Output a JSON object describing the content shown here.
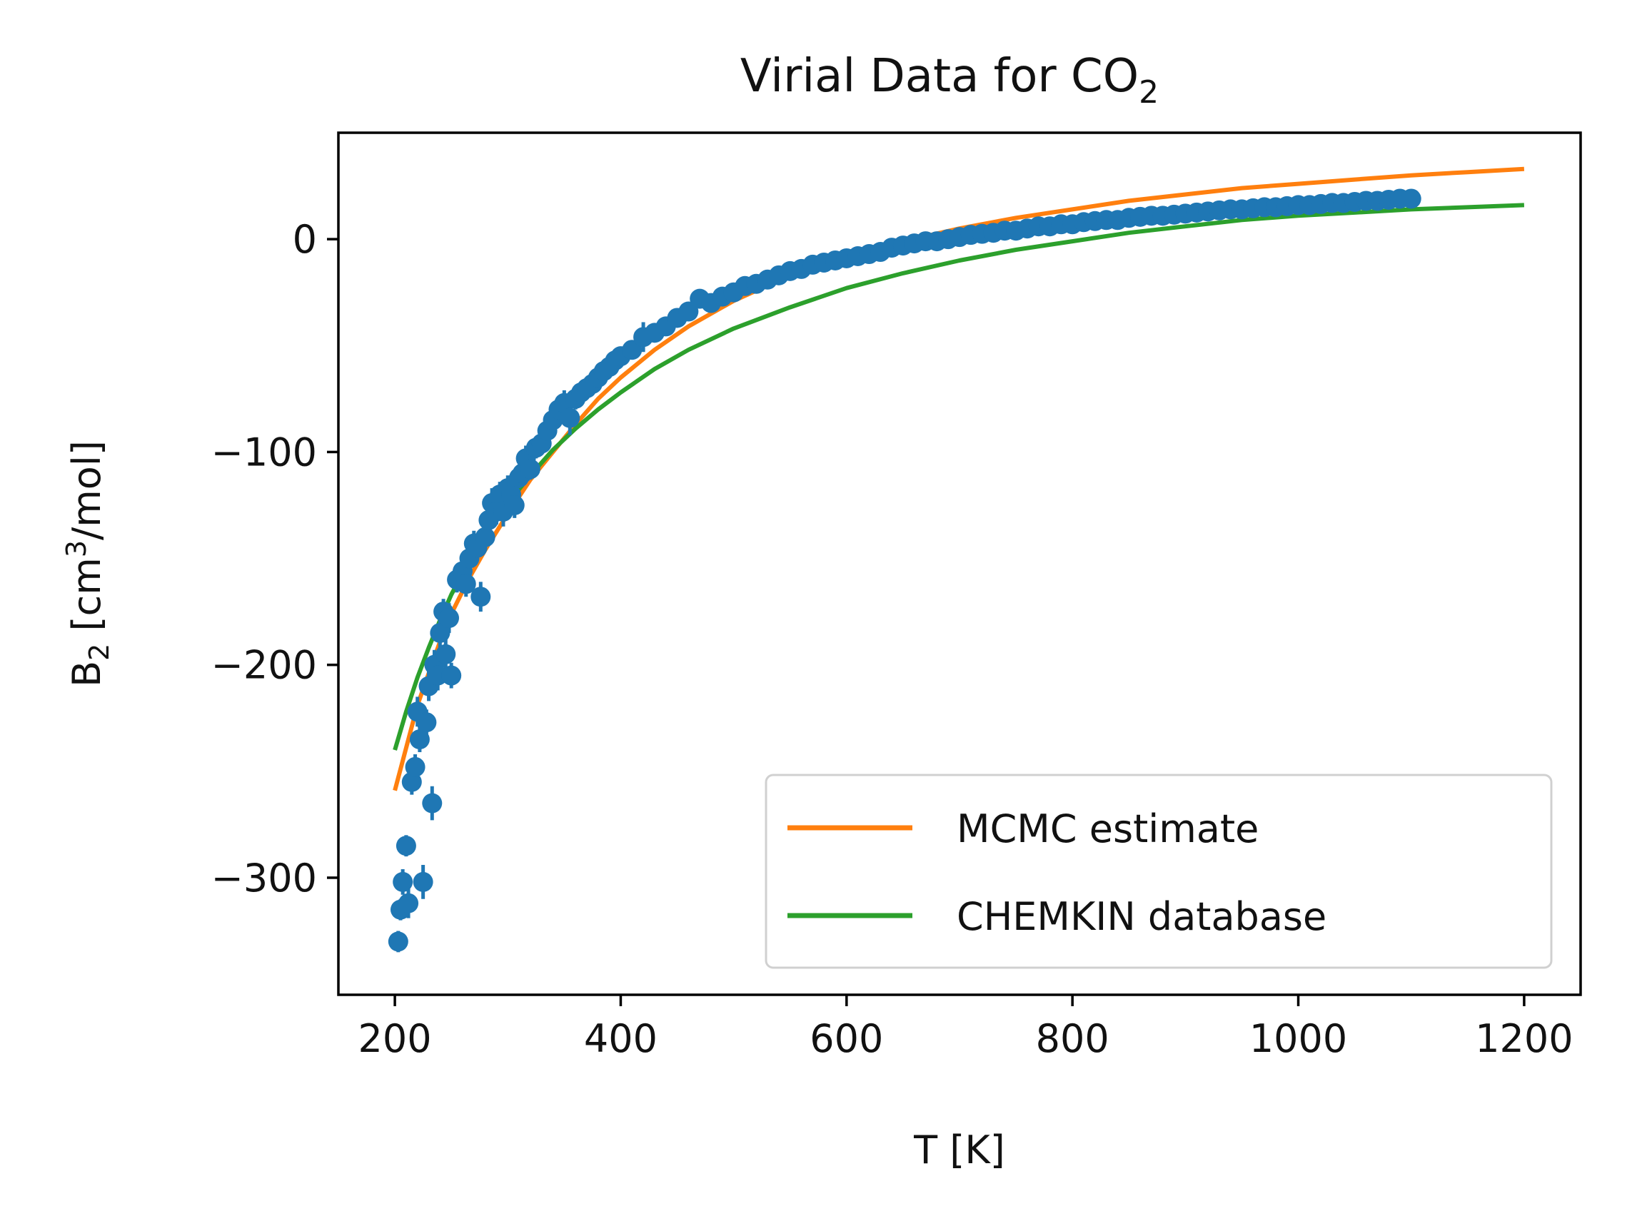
{
  "chart_data": {
    "type": "scatter",
    "title_main": "Virial Data for CO",
    "title_sub": "2",
    "xlabel": "T [K]",
    "ylabel_main": "B",
    "ylabel_sub": "2",
    "ylabel_unit_pre": " [cm",
    "ylabel_unit_sup": "3",
    "ylabel_unit_post": "/mol]",
    "xlim": [
      150,
      1250
    ],
    "ylim": [
      -355,
      50
    ],
    "xticks": [
      200,
      400,
      600,
      800,
      1000,
      1200
    ],
    "yticks": [
      0,
      -100,
      -200,
      -300
    ],
    "xtick_labels": [
      "200",
      "400",
      "600",
      "800",
      "1000",
      "1200"
    ],
    "ytick_labels": [
      "0",
      "−100",
      "−200",
      "−300"
    ],
    "grid": false,
    "legend_position": "lower-right",
    "series": [
      {
        "name": "MCMC estimate",
        "kind": "line",
        "color": "#ff7f0e",
        "x": [
          200,
          210,
          220,
          230,
          240,
          250,
          265,
          280,
          300,
          320,
          340,
          360,
          380,
          400,
          430,
          460,
          500,
          550,
          600,
          650,
          700,
          750,
          800,
          850,
          900,
          950,
          1000,
          1050,
          1100,
          1150,
          1200
        ],
        "y": [
          -259,
          -239,
          -219,
          -204,
          -189,
          -176,
          -160,
          -146,
          -129,
          -113,
          -100,
          -87,
          -75,
          -65,
          -52,
          -41,
          -29,
          -17,
          -8,
          -1,
          5,
          10,
          14,
          18,
          21,
          24,
          26,
          28,
          30,
          31.5,
          33
        ]
      },
      {
        "name": "CHEMKIN database",
        "kind": "line",
        "color": "#2ca02c",
        "x": [
          200,
          210,
          220,
          230,
          240,
          250,
          265,
          280,
          300,
          320,
          340,
          360,
          380,
          400,
          430,
          460,
          500,
          550,
          600,
          650,
          700,
          750,
          800,
          850,
          900,
          950,
          1000,
          1050,
          1100,
          1150,
          1200
        ],
        "y": [
          -240,
          -222,
          -206,
          -192,
          -179,
          -167,
          -152,
          -139,
          -124,
          -111,
          -99,
          -89,
          -80,
          -72,
          -61,
          -52,
          -42,
          -32,
          -23,
          -16,
          -10,
          -5,
          -1,
          3,
          6,
          9,
          11,
          12.5,
          14,
          15,
          16
        ]
      },
      {
        "kind": "scatter",
        "color": "#1f77b4",
        "x": [
          203,
          205,
          207,
          210,
          212,
          215,
          218,
          220,
          222,
          225,
          228,
          230,
          233,
          235,
          238,
          240,
          243,
          245,
          248,
          250,
          255,
          260,
          263,
          266,
          270,
          273,
          276,
          280,
          283,
          286,
          290,
          293,
          296,
          300,
          303,
          306,
          310,
          313,
          316,
          320,
          325,
          330,
          335,
          340,
          345,
          350,
          355,
          360,
          365,
          370,
          375,
          380,
          385,
          390,
          395,
          400,
          410,
          420,
          430,
          440,
          450,
          460,
          470,
          480,
          490,
          500,
          510,
          520,
          530,
          540,
          550,
          560,
          570,
          580,
          590,
          600,
          610,
          620,
          630,
          640,
          650,
          660,
          670,
          680,
          690,
          700,
          710,
          720,
          730,
          740,
          750,
          760,
          770,
          780,
          790,
          800,
          810,
          820,
          830,
          840,
          850,
          860,
          870,
          880,
          890,
          900,
          910,
          920,
          930,
          940,
          950,
          960,
          970,
          980,
          990,
          1000,
          1010,
          1020,
          1030,
          1040,
          1050,
          1060,
          1070,
          1080,
          1090,
          1100
        ],
        "y": [
          -330,
          -315,
          -302,
          -285,
          -312,
          -255,
          -248,
          -222,
          -235,
          -302,
          -227,
          -210,
          -265,
          -200,
          -205,
          -185,
          -175,
          -195,
          -178,
          -205,
          -160,
          -156,
          -162,
          -150,
          -143,
          -145,
          -168,
          -140,
          -132,
          -124,
          -128,
          -120,
          -128,
          -117,
          -120,
          -125,
          -112,
          -110,
          -103,
          -108,
          -98,
          -96,
          -90,
          -85,
          -80,
          -77,
          -84,
          -75,
          -72,
          -70,
          -68,
          -65,
          -62,
          -60,
          -57,
          -55,
          -52,
          -46,
          -44,
          -41,
          -37,
          -34,
          -28,
          -30,
          -27,
          -25,
          -22,
          -21,
          -19,
          -17,
          -15,
          -14,
          -12,
          -11,
          -10,
          -9,
          -8,
          -7,
          -6,
          -4,
          -3,
          -2,
          -1,
          -1,
          0,
          1,
          2,
          2.5,
          3,
          4,
          4,
          5,
          6,
          6,
          7,
          7,
          8,
          8.5,
          9,
          9,
          10,
          10.5,
          11,
          11,
          11.5,
          12,
          12.5,
          13,
          13.5,
          14,
          14,
          14.5,
          15,
          15,
          15.5,
          16,
          16,
          16.5,
          17,
          17,
          17.5,
          18,
          18,
          18.5,
          19,
          19
        ],
        "yerr": [
          5,
          5,
          6,
          5,
          7,
          6,
          6,
          7,
          6,
          8,
          6,
          7,
          8,
          7,
          7,
          7,
          6,
          8,
          7,
          6,
          6,
          7,
          6,
          7,
          6,
          6,
          7,
          6,
          8,
          7,
          6,
          6,
          7,
          6,
          8,
          6,
          5,
          5,
          6,
          5,
          5,
          5,
          6,
          5,
          6,
          6,
          8,
          5,
          5,
          5,
          5,
          4,
          4,
          4,
          4,
          4,
          4,
          7,
          4,
          3,
          3,
          3,
          3,
          3,
          3,
          3,
          2,
          2,
          2,
          2,
          2,
          2,
          2,
          2,
          2,
          2,
          2,
          2,
          2,
          2,
          2,
          2,
          2,
          2,
          2,
          2,
          2,
          2,
          2,
          2,
          2,
          2,
          2,
          2,
          2,
          2,
          2,
          2,
          2,
          2,
          2,
          2,
          2,
          2,
          2,
          2,
          2,
          2,
          2,
          2,
          2,
          2,
          2,
          2,
          2,
          2,
          2,
          2,
          2,
          2,
          2,
          2,
          2,
          2,
          2,
          2
        ]
      }
    ]
  }
}
